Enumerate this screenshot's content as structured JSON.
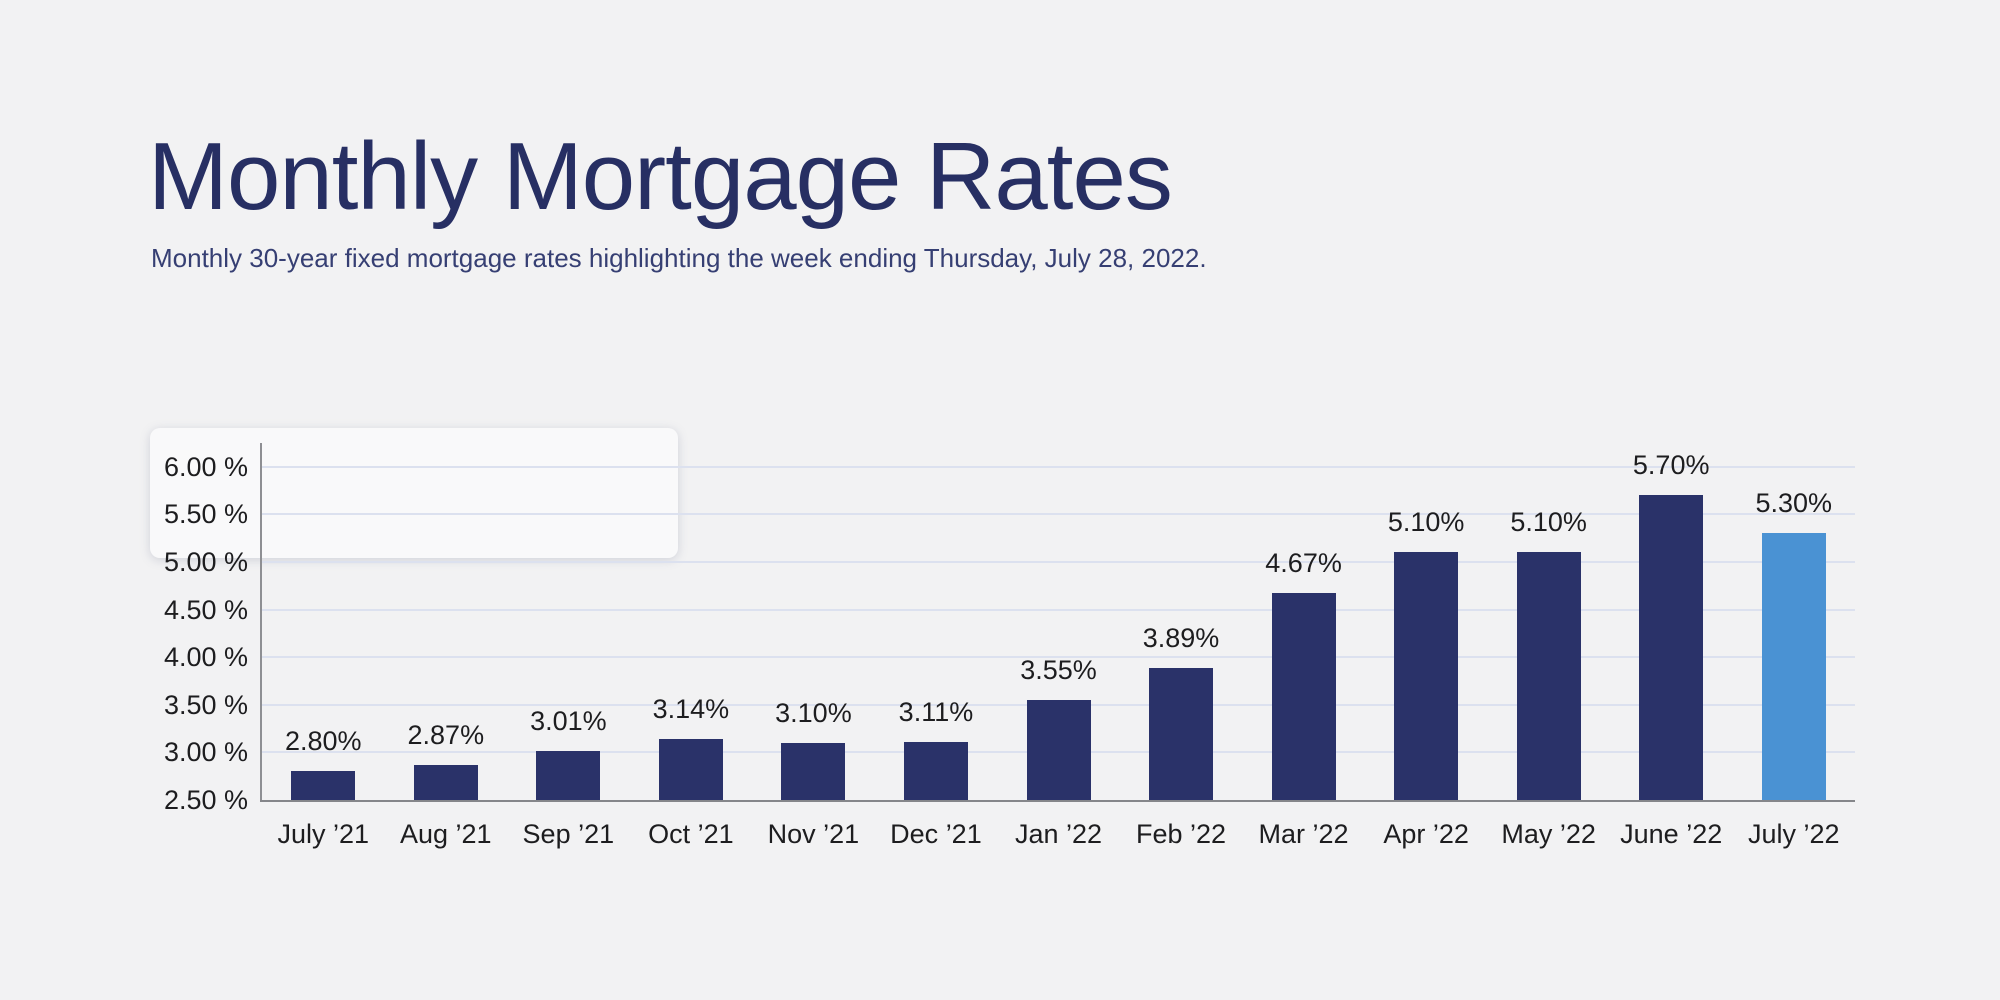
{
  "canvas": {
    "background": "#f2f2f3"
  },
  "chart_data": {
    "type": "bar",
    "title": "Monthly Mortgage Rates",
    "subtitle": "Monthly 30-year fixed mortgage rates highlighting the week ending Thursday, July 28, 2022.",
    "categories": [
      "July ’21",
      "Aug ’21",
      "Sep ’21",
      "Oct ’21",
      "Nov ’21",
      "Dec ’21",
      "Jan ’22",
      "Feb ’22",
      "Mar ’22",
      "Apr ’22",
      "May ’22",
      "June ’22",
      "July ’22"
    ],
    "values": [
      2.8,
      2.87,
      3.01,
      3.14,
      3.1,
      3.11,
      3.55,
      3.89,
      4.67,
      5.1,
      5.1,
      5.7,
      5.3
    ],
    "value_labels": [
      "2.80%",
      "2.87%",
      "3.01%",
      "3.14%",
      "3.10%",
      "3.11%",
      "3.55%",
      "3.89%",
      "4.67%",
      "5.10%",
      "5.10%",
      "5.70%",
      "5.30%"
    ],
    "highlighted_category": "July ’22",
    "highlight_index": 12,
    "xlabel": "",
    "ylabel": "",
    "ylim": [
      2.5,
      6.25
    ],
    "ytick_values": [
      2.5,
      3.0,
      3.5,
      4.0,
      4.5,
      5.0,
      5.5,
      6.0
    ],
    "ytick_labels": [
      "2.50 %",
      "3.00 %",
      "3.50 %",
      "4.00 %",
      "4.50 %",
      "5.00 %",
      "5.50 %",
      "6.00 %"
    ],
    "grid": true,
    "legend_position": "none",
    "colors": {
      "bar": "#2a3269",
      "bar_highlight": "#4a92d3",
      "gridline": "#dce1ef",
      "axis": "#8e8f93",
      "baseline": "#85868a",
      "value_label": "#1d1d1f",
      "tick_label": "#1d1d1f",
      "title": "#272f63",
      "subtitle": "#363f73"
    }
  }
}
